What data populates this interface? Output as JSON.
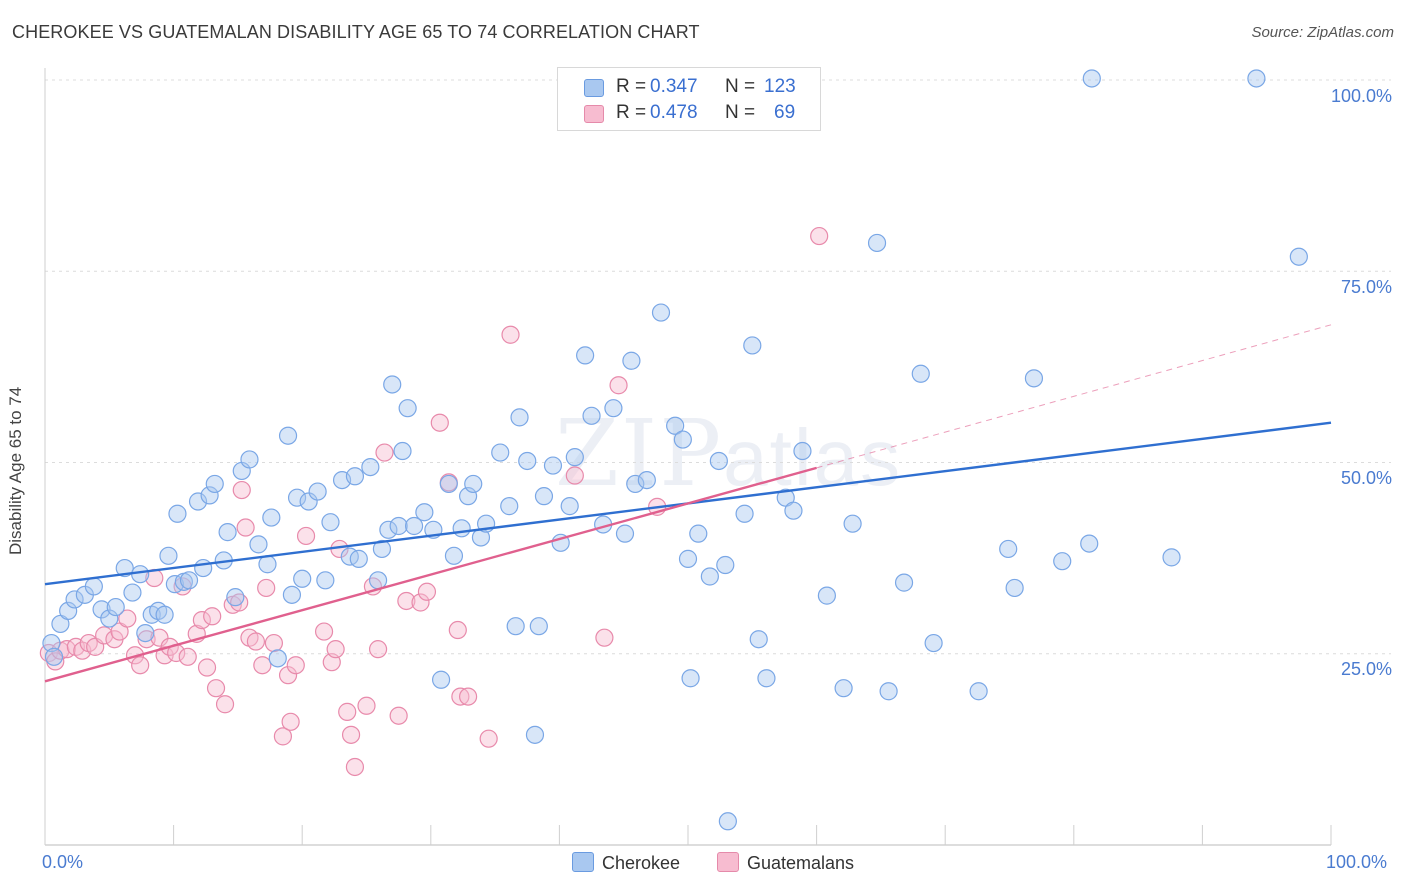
{
  "title": "CHEROKEE VS GUATEMALAN DISABILITY AGE 65 TO 74 CORRELATION CHART",
  "source": "Source: ZipAtlas.com",
  "watermark": {
    "zip": "ZIP",
    "atlas": "atlas"
  },
  "legend": {
    "r_label": "R =",
    "n_label": "N =",
    "rows": [
      {
        "r": "0.347",
        "n": "123",
        "color": "#a9c8f0",
        "border": "#6a9be0"
      },
      {
        "r": "0.478",
        "n": "69",
        "color": "#f7bcd0",
        "border": "#e58aaa"
      }
    ]
  },
  "bottom_legend": [
    {
      "label": "Cherokee",
      "color": "#a9c8f0"
    },
    {
      "label": "Guatemalans",
      "color": "#f7bcd0"
    }
  ],
  "chart_data": {
    "type": "scatter",
    "ylabel": "Disability Age 65 to 74",
    "x_ticks": [
      "0.0%",
      "100.0%"
    ],
    "y_ticks": [
      "100.0%",
      "75.0%",
      "50.0%",
      "25.0%"
    ],
    "xlim": [
      0,
      100
    ],
    "ylim": [
      0,
      102
    ],
    "grid": "horizontal dashed",
    "series": [
      {
        "name": "Cherokee",
        "color": "#7aa7e6",
        "fill": "rgba(169,200,240,0.45)",
        "trend": {
          "x": [
            0,
            100
          ],
          "y": [
            34.1,
            55.2
          ],
          "color": "#2f6fd0"
        },
        "points": [
          [
            0.5,
            26.4
          ],
          [
            0.7,
            24.6
          ],
          [
            1.2,
            28.9
          ],
          [
            1.8,
            30.6
          ],
          [
            2.3,
            32.1
          ],
          [
            3.1,
            32.7
          ],
          [
            3.8,
            33.8
          ],
          [
            4.4,
            30.8
          ],
          [
            5.0,
            29.6
          ],
          [
            5.5,
            31.1
          ],
          [
            6.2,
            36.2
          ],
          [
            6.8,
            33.0
          ],
          [
            7.4,
            35.4
          ],
          [
            7.8,
            27.7
          ],
          [
            8.3,
            30.1
          ],
          [
            8.8,
            30.6
          ],
          [
            9.3,
            30.1
          ],
          [
            9.6,
            37.8
          ],
          [
            10.1,
            34.1
          ],
          [
            10.3,
            43.3
          ],
          [
            10.8,
            34.4
          ],
          [
            11.2,
            34.6
          ],
          [
            11.9,
            44.9
          ],
          [
            12.3,
            36.2
          ],
          [
            12.8,
            45.7
          ],
          [
            13.2,
            47.2
          ],
          [
            13.9,
            37.2
          ],
          [
            14.2,
            40.9
          ],
          [
            14.8,
            32.4
          ],
          [
            15.3,
            48.9
          ],
          [
            15.9,
            50.4
          ],
          [
            16.6,
            39.3
          ],
          [
            17.3,
            36.7
          ],
          [
            17.6,
            42.8
          ],
          [
            18.1,
            24.4
          ],
          [
            18.9,
            53.5
          ],
          [
            19.2,
            32.7
          ],
          [
            19.6,
            45.4
          ],
          [
            20.0,
            34.8
          ],
          [
            20.5,
            44.9
          ],
          [
            21.2,
            46.2
          ],
          [
            21.8,
            34.6
          ],
          [
            22.2,
            42.2
          ],
          [
            23.1,
            47.7
          ],
          [
            23.7,
            37.7
          ],
          [
            24.1,
            48.2
          ],
          [
            24.4,
            37.4
          ],
          [
            25.3,
            49.4
          ],
          [
            25.9,
            34.6
          ],
          [
            26.2,
            38.7
          ],
          [
            26.7,
            41.2
          ],
          [
            27.0,
            60.2
          ],
          [
            27.5,
            41.7
          ],
          [
            27.8,
            51.5
          ],
          [
            28.2,
            57.1
          ],
          [
            28.7,
            41.7
          ],
          [
            29.5,
            43.5
          ],
          [
            30.2,
            41.2
          ],
          [
            30.8,
            21.6
          ],
          [
            31.4,
            47.2
          ],
          [
            31.8,
            37.8
          ],
          [
            32.4,
            41.4
          ],
          [
            32.9,
            45.6
          ],
          [
            33.3,
            47.2
          ],
          [
            33.9,
            40.2
          ],
          [
            34.3,
            42.0
          ],
          [
            35.4,
            51.3
          ],
          [
            36.1,
            44.3
          ],
          [
            36.6,
            28.6
          ],
          [
            36.9,
            55.9
          ],
          [
            37.5,
            50.2
          ],
          [
            38.1,
            14.4
          ],
          [
            38.4,
            28.6
          ],
          [
            38.8,
            45.6
          ],
          [
            39.5,
            49.6
          ],
          [
            40.1,
            39.5
          ],
          [
            40.8,
            44.3
          ],
          [
            41.2,
            50.7
          ],
          [
            42.0,
            64.0
          ],
          [
            42.5,
            56.1
          ],
          [
            43.4,
            41.9
          ],
          [
            44.2,
            57.1
          ],
          [
            45.1,
            40.7
          ],
          [
            45.6,
            63.3
          ],
          [
            45.9,
            47.2
          ],
          [
            46.8,
            47.7
          ],
          [
            47.9,
            69.6
          ],
          [
            49.0,
            54.8
          ],
          [
            49.6,
            53.0
          ],
          [
            50.0,
            37.4
          ],
          [
            50.2,
            21.8
          ],
          [
            50.8,
            40.7
          ],
          [
            51.7,
            35.1
          ],
          [
            52.4,
            50.2
          ],
          [
            52.9,
            36.6
          ],
          [
            53.1,
            3.1
          ],
          [
            54.4,
            43.3
          ],
          [
            55.0,
            65.3
          ],
          [
            55.5,
            26.9
          ],
          [
            56.1,
            21.8
          ],
          [
            57.6,
            45.4
          ],
          [
            58.2,
            43.7
          ],
          [
            58.9,
            51.5
          ],
          [
            60.8,
            32.6
          ],
          [
            62.1,
            20.5
          ],
          [
            62.8,
            42.0
          ],
          [
            64.7,
            78.7
          ],
          [
            65.6,
            20.1
          ],
          [
            66.8,
            34.3
          ],
          [
            68.1,
            61.6
          ],
          [
            69.1,
            26.4
          ],
          [
            72.6,
            20.1
          ],
          [
            74.9,
            38.7
          ],
          [
            75.4,
            33.6
          ],
          [
            76.9,
            61.0
          ],
          [
            79.1,
            37.1
          ],
          [
            81.2,
            39.4
          ],
          [
            81.4,
            100.2
          ],
          [
            87.6,
            37.6
          ],
          [
            94.2,
            100.2
          ],
          [
            97.5,
            76.9
          ]
        ]
      },
      {
        "name": "Guatemalans",
        "color": "#e88aab",
        "fill": "rgba(247,188,208,0.45)",
        "trend": {
          "x": [
            0,
            60
          ],
          "y": [
            21.4,
            49.3
          ],
          "color": "#e0608e",
          "extend_to": [
            100,
            68.0
          ]
        },
        "points": [
          [
            0.3,
            25.1
          ],
          [
            0.8,
            24.0
          ],
          [
            1.2,
            25.4
          ],
          [
            1.7,
            25.6
          ],
          [
            2.4,
            25.9
          ],
          [
            2.9,
            25.4
          ],
          [
            3.4,
            26.4
          ],
          [
            3.9,
            25.9
          ],
          [
            4.6,
            27.4
          ],
          [
            5.4,
            26.9
          ],
          [
            5.8,
            27.9
          ],
          [
            6.4,
            29.6
          ],
          [
            7.0,
            24.8
          ],
          [
            7.4,
            23.5
          ],
          [
            7.9,
            26.9
          ],
          [
            8.5,
            34.9
          ],
          [
            8.9,
            27.1
          ],
          [
            9.3,
            24.8
          ],
          [
            9.7,
            25.9
          ],
          [
            10.2,
            25.1
          ],
          [
            10.7,
            33.8
          ],
          [
            11.1,
            24.6
          ],
          [
            11.8,
            27.6
          ],
          [
            12.2,
            29.4
          ],
          [
            12.6,
            23.2
          ],
          [
            13.0,
            29.9
          ],
          [
            13.3,
            20.5
          ],
          [
            14.0,
            18.4
          ],
          [
            14.6,
            31.4
          ],
          [
            15.1,
            31.7
          ],
          [
            15.3,
            46.4
          ],
          [
            15.6,
            41.5
          ],
          [
            15.9,
            27.1
          ],
          [
            16.4,
            26.6
          ],
          [
            16.9,
            23.5
          ],
          [
            17.2,
            33.6
          ],
          [
            17.8,
            26.4
          ],
          [
            18.5,
            14.2
          ],
          [
            18.9,
            22.2
          ],
          [
            19.1,
            16.1
          ],
          [
            19.5,
            23.5
          ],
          [
            20.3,
            40.4
          ],
          [
            21.7,
            27.9
          ],
          [
            22.3,
            23.9
          ],
          [
            22.6,
            25.6
          ],
          [
            22.9,
            38.7
          ],
          [
            23.5,
            17.4
          ],
          [
            23.8,
            14.4
          ],
          [
            24.1,
            10.2
          ],
          [
            25.0,
            18.2
          ],
          [
            25.5,
            33.8
          ],
          [
            25.9,
            25.6
          ],
          [
            26.4,
            51.3
          ],
          [
            27.5,
            16.9
          ],
          [
            28.1,
            31.9
          ],
          [
            29.2,
            31.7
          ],
          [
            29.7,
            33.1
          ],
          [
            30.7,
            55.2
          ],
          [
            31.4,
            47.4
          ],
          [
            32.1,
            28.1
          ],
          [
            32.3,
            19.4
          ],
          [
            32.9,
            19.4
          ],
          [
            34.5,
            13.9
          ],
          [
            36.2,
            66.7
          ],
          [
            41.2,
            48.3
          ],
          [
            43.5,
            27.1
          ],
          [
            44.6,
            60.1
          ],
          [
            60.2,
            79.6
          ],
          [
            47.6,
            44.2
          ]
        ]
      }
    ]
  }
}
